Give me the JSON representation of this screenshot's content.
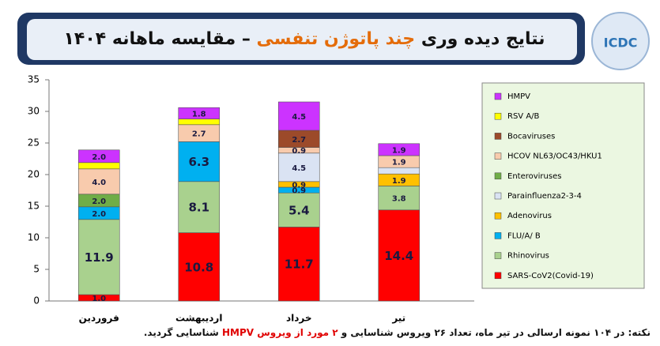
{
  "header": {
    "title_parts": [
      "نتایج دیده وری",
      "چند پاتوژن تنفسی",
      "– مقایسه ماهانه ۱۴۰۴"
    ],
    "logo": "ICDC"
  },
  "chart_data": {
    "type": "stacked-bar",
    "categories": [
      "فروردین",
      "اردیبهشت",
      "خرداد",
      "تیر"
    ],
    "ylim": [
      0,
      35
    ],
    "yticks": [
      0,
      5,
      10,
      15,
      20,
      25,
      30,
      35
    ],
    "grid": false,
    "legend": "right",
    "series": [
      {
        "name": "SARS-CoV2(Covid-19)",
        "color": "#ff0000",
        "values": [
          1.0,
          10.8,
          11.7,
          14.4
        ],
        "value_labels": [
          "1.0",
          "10.8",
          "11.7",
          "14.4"
        ]
      },
      {
        "name": "Rhinovirus",
        "color": "#a9d18e",
        "values": [
          11.9,
          8.1,
          5.4,
          3.8
        ],
        "value_labels": [
          "11.9",
          "8.1",
          "5.4",
          "3.8"
        ]
      },
      {
        "name": "FLU/A/ B",
        "color": "#00b0f0",
        "values": [
          2.0,
          6.3,
          0.9,
          null
        ],
        "value_labels": [
          "2.0",
          "6.3",
          "0.9",
          null
        ]
      },
      {
        "name": "Adenovirus",
        "color": "#ffc000",
        "values": [
          null,
          null,
          0.9,
          1.9
        ],
        "value_labels": [
          null,
          null,
          "0.9",
          "1.9"
        ]
      },
      {
        "name": "Parainfluenza2-3-4",
        "color": "#dae3f3",
        "values": [
          null,
          null,
          4.5,
          1.0
        ],
        "value_labels": [
          null,
          null,
          "4.5",
          null
        ]
      },
      {
        "name": "Enteroviruses",
        "color": "#70ad47",
        "values": [
          2.0,
          null,
          null,
          null
        ],
        "value_labels": [
          "2.0",
          null,
          null,
          null
        ]
      },
      {
        "name": "HCOV NL63/OC43/HKU1",
        "color": "#f8cbad",
        "values": [
          4.0,
          2.7,
          0.9,
          1.9
        ],
        "value_labels": [
          "4.0",
          "2.7",
          "0.9",
          "1.9"
        ]
      },
      {
        "name": "Bocaviruses",
        "color": "#9c4a2a",
        "values": [
          null,
          null,
          2.7,
          null
        ],
        "value_labels": [
          null,
          null,
          "2.7",
          null
        ]
      },
      {
        "name": "RSV A/B",
        "color": "#ffff00",
        "values": [
          1.0,
          0.9,
          null,
          null
        ],
        "value_labels": [
          null,
          null,
          null,
          null
        ]
      },
      {
        "name": "HMPV",
        "color": "#cc33ff",
        "values": [
          2.0,
          1.8,
          4.5,
          1.9
        ],
        "value_labels": [
          "2.0",
          "1.8",
          "4.5",
          "1.9"
        ]
      }
    ]
  },
  "footnote": {
    "parts": [
      "نکته: در ۱۰۴ نمونه ارسالی در تیر ماه، تعداد ۲۶ ویروس شناسایی و",
      "۲ مورد از ویروس HMPV",
      "شناسایی گردید."
    ]
  }
}
